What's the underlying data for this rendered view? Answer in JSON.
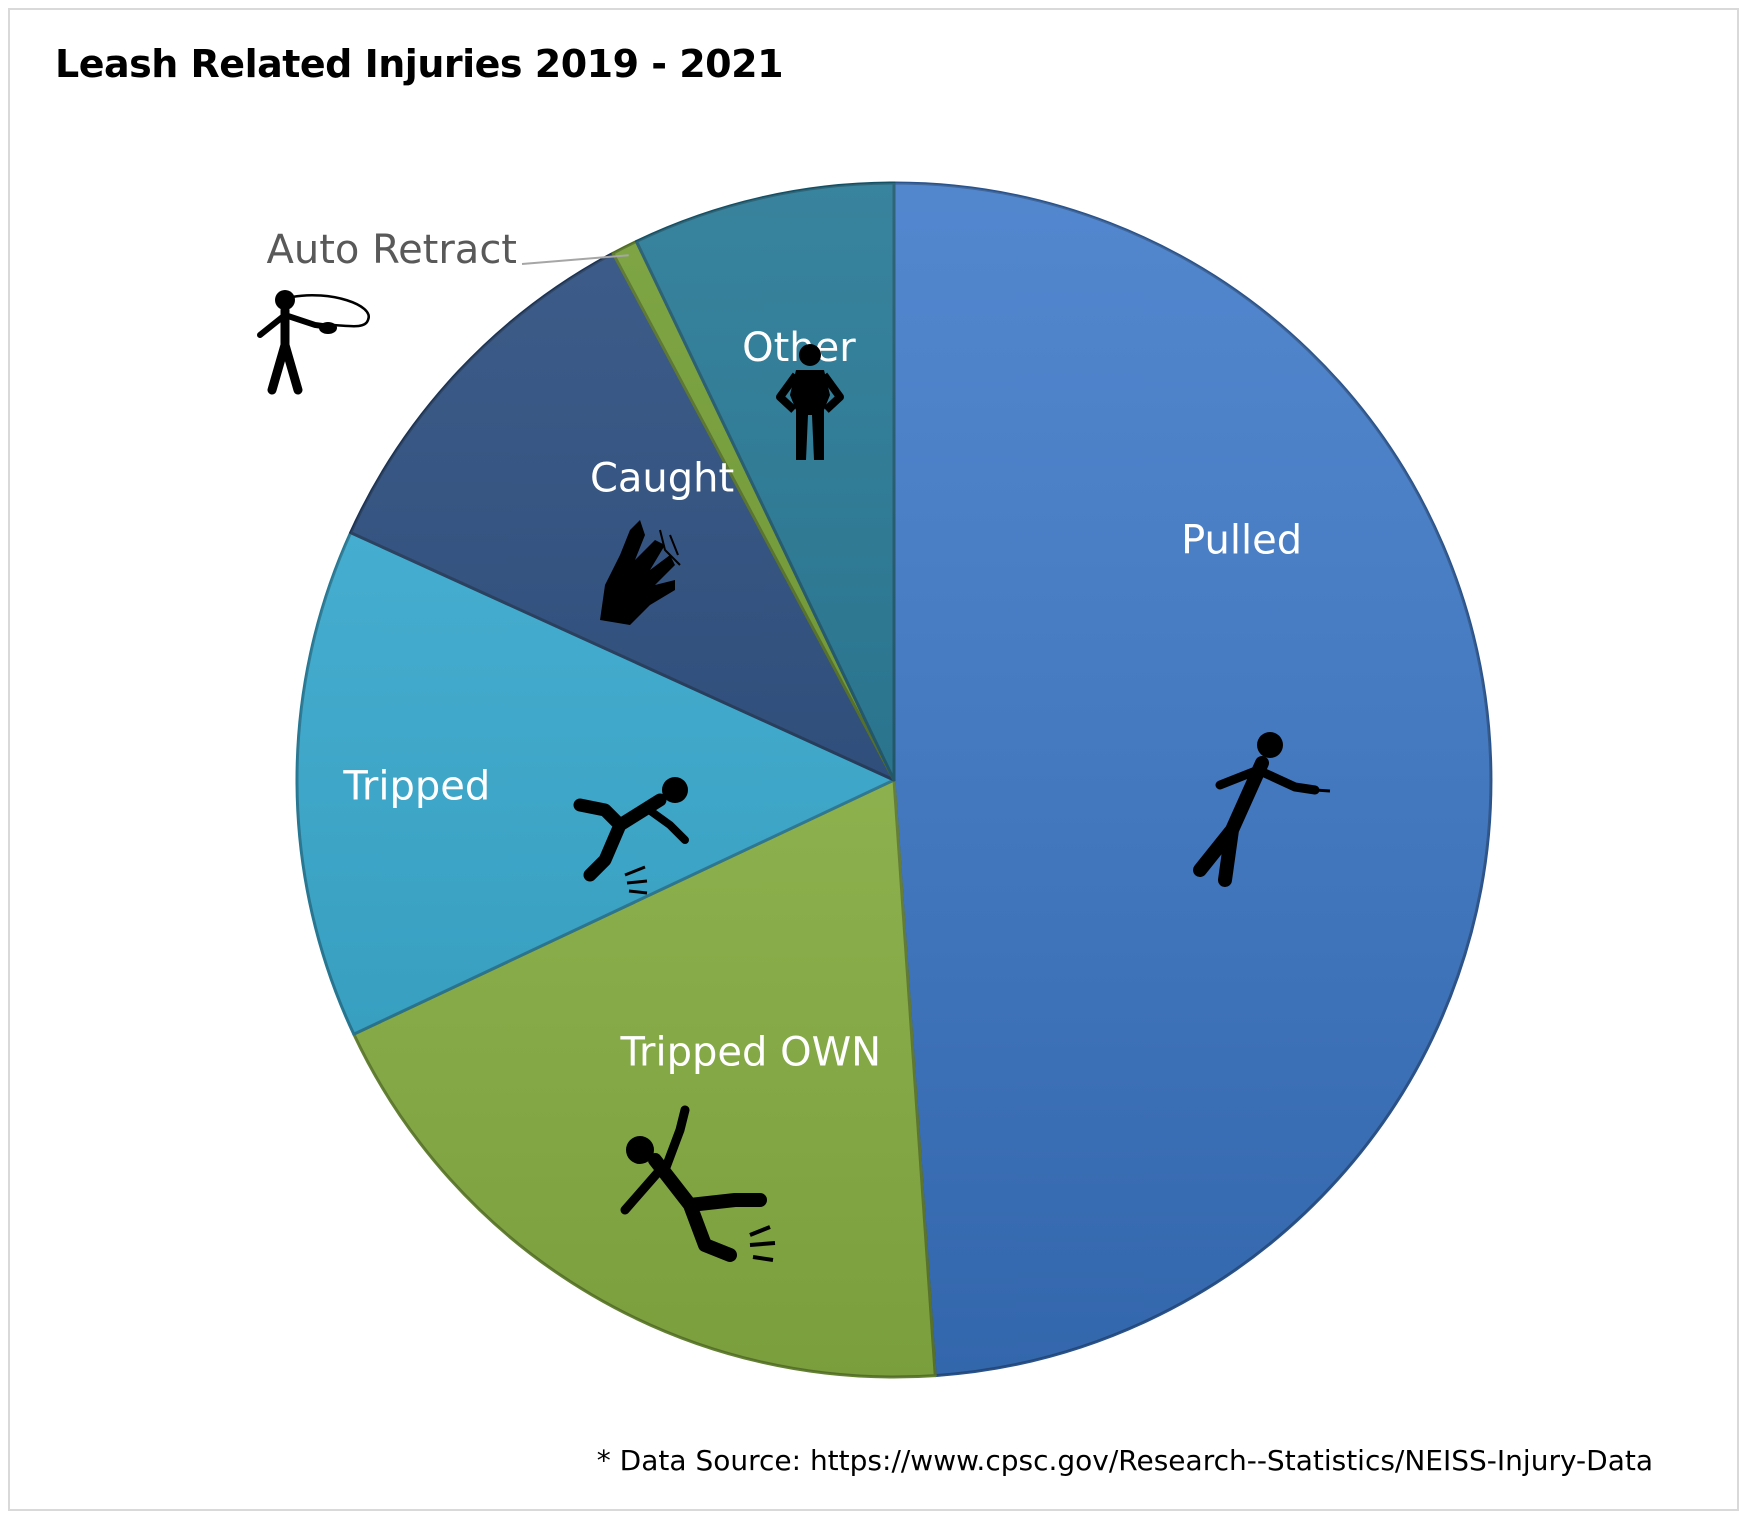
{
  "title": "Leash Related Injuries 2019 - 2021",
  "source_note": "* Data Source: https://www.cpsc.gov/Research--Statistics/NEISS-Injury-Data",
  "chart_data": {
    "type": "pie",
    "title": "Leash Related Injuries 2019 - 2021",
    "start_angle_deg": 0,
    "direction": "clockwise",
    "legend": "none",
    "slices": [
      {
        "label": "Pulled",
        "value": 48.9,
        "color": "#3b77c8",
        "icon": "person-pulled-by-leash-icon"
      },
      {
        "label": "Tripped OWN",
        "value": 19.1,
        "color": "#8eb846",
        "icon": "person-falling-backward-icon"
      },
      {
        "label": "Tripped",
        "value": 13.8,
        "color": "#35acd3",
        "icon": "person-tripping-forward-icon"
      },
      {
        "label": "Caught",
        "value": 10.4,
        "color": "#24477a",
        "icon": "hand-caught-in-leash-icon"
      },
      {
        "label": "Auto Retract",
        "value": 0.7,
        "color": "#6e9a2c",
        "icon": "person-retractable-leash-icon"
      },
      {
        "label": "Other",
        "value": 7.1,
        "color": "#1d7290",
        "icon": "person-standing-icon"
      }
    ]
  }
}
